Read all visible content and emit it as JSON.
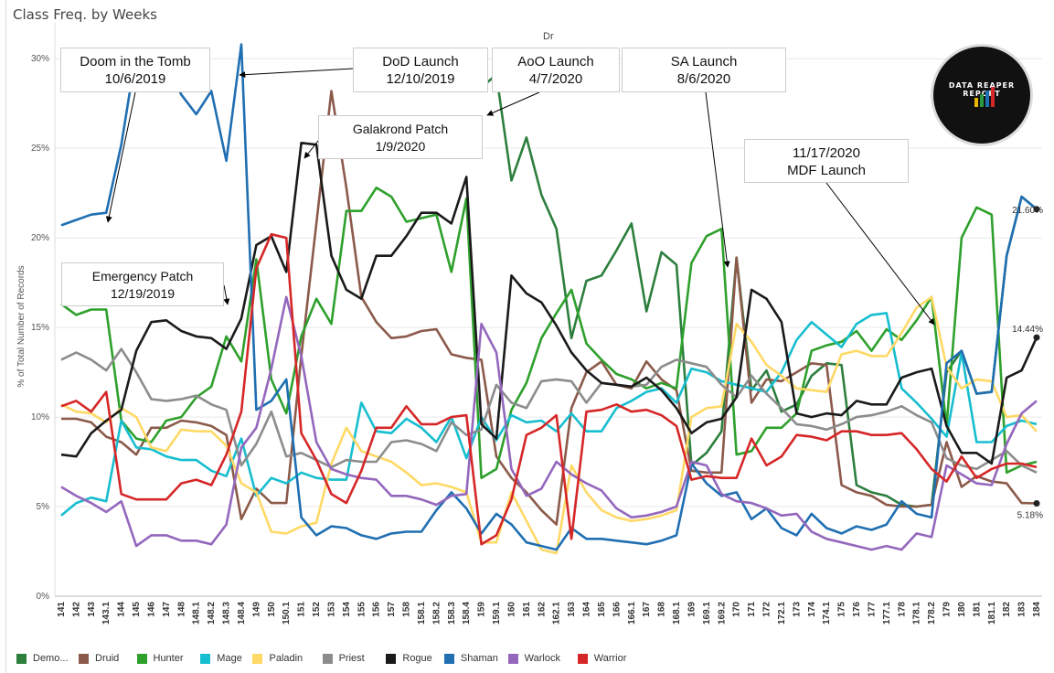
{
  "page_title": "Class Freq. by Weeks",
  "facet_label": "Dr",
  "logo": {
    "text": "DATA REAPER REPORT"
  },
  "y_axis_label": "% of Total Number of Records",
  "end_labels": {
    "hunter_dark": "21.60%",
    "rogue": "14.44%",
    "warlock": "5.18%"
  },
  "annotations": [
    {
      "id": "doom",
      "line1": "Doom in the Tomb",
      "line2": "10/6/2019"
    },
    {
      "id": "dod",
      "line1": "DoD Launch",
      "line2": "12/10/2019"
    },
    {
      "id": "aoo",
      "line1": "AoO Launch",
      "line2": "4/7/2020"
    },
    {
      "id": "sa",
      "line1": "SA Launch",
      "line2": "8/6/2020"
    },
    {
      "id": "galak",
      "line1": "Galakrond Patch",
      "line2": "1/9/2020"
    },
    {
      "id": "mdf",
      "line1": "11/17/2020",
      "line2": "MDF Launch"
    },
    {
      "id": "emerg",
      "line1": "Emergency Patch",
      "line2": "12/19/2019"
    }
  ],
  "chart_data": {
    "type": "line",
    "title": "Class Freq. by Weeks",
    "ylabel": "% of Total Number of Records",
    "ylim": [
      0,
      32
    ],
    "yticks": [
      "0%",
      "5%",
      "10%",
      "15%",
      "20%",
      "25%",
      "30%"
    ],
    "grid": true,
    "legend_position": "bottom",
    "x": [
      "141",
      "142",
      "143",
      "143.1",
      "144",
      "145",
      "146",
      "147",
      "148",
      "148.1",
      "148.2",
      "148.3",
      "148.4",
      "149",
      "150",
      "150.1",
      "151",
      "152",
      "153",
      "154",
      "155",
      "156",
      "157",
      "158",
      "158.1",
      "158.2",
      "158.3",
      "158.4",
      "159",
      "159.1",
      "160",
      "161",
      "162",
      "162.1",
      "163",
      "164",
      "165",
      "166",
      "166.1",
      "167",
      "168",
      "168.1",
      "169",
      "169.1",
      "169.2",
      "170",
      "171",
      "172",
      "172.1",
      "173",
      "174",
      "174.1",
      "175",
      "176",
      "177",
      "177.1",
      "178",
      "178.1",
      "178.2",
      "179",
      "180",
      "181",
      "181.1",
      "182",
      "183",
      "184"
    ],
    "series": [
      {
        "name": "Demo...",
        "color": "#2d7f3e",
        "values": [
          null,
          null,
          null,
          null,
          null,
          null,
          null,
          null,
          null,
          null,
          null,
          null,
          null,
          null,
          null,
          null,
          null,
          null,
          null,
          null,
          null,
          null,
          null,
          null,
          null,
          null,
          null,
          null,
          28.4,
          29.1,
          23.2,
          25.6,
          22.4,
          20.5,
          14.4,
          17.6,
          17.9,
          19.3,
          20.8,
          15.9,
          19.2,
          18.5,
          7.3,
          8.0,
          9.2,
          18.9,
          11.5,
          12.6,
          10.3,
          10.7,
          12.3,
          13.0,
          12.9,
          6.2,
          5.8,
          5.6,
          5.1,
          5.0,
          5.1,
          12.5,
          13.7,
          11.3,
          11.4,
          19.0,
          22.3,
          21.6
        ]
      },
      {
        "name": "Druid",
        "color": "#8b5a4a",
        "values": [
          9.9,
          9.9,
          9.7,
          8.9,
          8.6,
          7.9,
          9.4,
          9.4,
          9.8,
          9.7,
          9.5,
          9.0,
          4.3,
          6.0,
          5.2,
          5.2,
          13.4,
          20.8,
          28.2,
          22.8,
          16.7,
          15.3,
          14.4,
          14.5,
          14.8,
          14.9,
          13.5,
          13.3,
          13.2,
          7.8,
          6.6,
          5.8,
          4.8,
          4.0,
          10.5,
          12.5,
          13.1,
          11.8,
          11.6,
          13.1,
          12.1,
          11.5,
          7.0,
          6.9,
          6.9,
          18.9,
          10.8,
          12.1,
          12.0,
          12.5,
          13.0,
          12.9,
          6.2,
          5.8,
          5.6,
          5.1,
          5.0,
          5.0,
          5.1,
          8.6,
          6.1,
          6.7,
          6.4,
          6.3,
          5.2,
          5.18
        ]
      },
      {
        "name": "Hunter",
        "color": "#2ea02c",
        "values": [
          16.3,
          15.7,
          16.0,
          16.0,
          9.8,
          8.8,
          8.6,
          9.8,
          10.0,
          11.1,
          11.7,
          14.5,
          13.1,
          18.8,
          12.1,
          10.2,
          14.5,
          16.6,
          15.2,
          21.5,
          21.5,
          22.8,
          22.3,
          20.9,
          21.1,
          21.3,
          18.1,
          22.2,
          6.6,
          7.1,
          10.4,
          11.9,
          14.4,
          15.8,
          17.1,
          14.1,
          13.2,
          12.4,
          12.1,
          11.6,
          11.9,
          11.6,
          18.6,
          20.1,
          20.5,
          7.9,
          8.1,
          9.4,
          9.4,
          10.2,
          13.7,
          14.0,
          14.2,
          14.8,
          13.7,
          14.9,
          14.3,
          15.4,
          16.7,
          9.5,
          20.0,
          21.7,
          21.3,
          6.9,
          7.3,
          7.5
        ]
      },
      {
        "name": "Mage",
        "color": "#17becf",
        "values": [
          4.5,
          5.2,
          5.5,
          5.3,
          9.8,
          8.3,
          8.2,
          7.8,
          7.6,
          7.6,
          7.0,
          6.7,
          8.8,
          5.6,
          6.6,
          6.3,
          6.9,
          6.6,
          6.5,
          6.5,
          10.8,
          9.2,
          9.1,
          9.9,
          9.4,
          8.6,
          10.0,
          7.7,
          10.0,
          8.7,
          10.1,
          9.7,
          9.8,
          9.2,
          10.2,
          9.2,
          9.2,
          10.5,
          10.9,
          11.4,
          11.6,
          10.8,
          12.7,
          12.5,
          12.0,
          11.8,
          11.6,
          11.4,
          12.5,
          14.3,
          15.3,
          14.6,
          13.9,
          15.2,
          15.7,
          15.8,
          11.6,
          10.8,
          9.9,
          8.9,
          13.6,
          8.6,
          8.6,
          9.5,
          9.8,
          9.6
        ]
      },
      {
        "name": "Paladin",
        "color": "#ffd966",
        "values": [
          10.7,
          10.3,
          10.2,
          9.7,
          10.5,
          10.0,
          8.3,
          8.1,
          9.3,
          9.2,
          9.2,
          8.4,
          6.3,
          5.8,
          3.6,
          3.5,
          3.9,
          4.1,
          7.4,
          9.4,
          8.1,
          7.8,
          7.5,
          6.9,
          6.2,
          6.3,
          6.1,
          5.8,
          3.0,
          3.0,
          5.8,
          4.2,
          2.6,
          2.4,
          7.3,
          5.8,
          4.8,
          4.4,
          4.2,
          4.3,
          4.5,
          4.8,
          10.0,
          10.5,
          10.6,
          15.2,
          14.2,
          12.9,
          12.3,
          11.6,
          11.5,
          11.4,
          13.5,
          13.7,
          13.4,
          13.4,
          14.7,
          16.1,
          16.7,
          12.8,
          11.6,
          12.1,
          12.0,
          10.0,
          10.1,
          9.2
        ]
      },
      {
        "name": "Priest",
        "color": "#8c8c8c",
        "values": [
          13.2,
          13.6,
          13.2,
          12.6,
          13.8,
          12.5,
          11.0,
          10.9,
          11.0,
          11.2,
          10.7,
          10.4,
          7.3,
          8.5,
          10.3,
          7.8,
          8.0,
          7.6,
          7.2,
          7.6,
          7.5,
          7.5,
          8.6,
          8.7,
          8.5,
          8.1,
          9.7,
          9.0,
          9.3,
          11.8,
          10.8,
          10.5,
          12.0,
          12.1,
          12.0,
          10.8,
          11.9,
          11.8,
          11.7,
          11.8,
          12.8,
          13.2,
          13.0,
          12.8,
          11.8,
          11.1,
          12.3,
          11.3,
          10.5,
          9.6,
          9.5,
          9.3,
          9.6,
          10.0,
          10.1,
          10.3,
          10.6,
          10.1,
          9.7,
          7.7,
          7.3,
          7.1,
          7.6,
          8.1,
          7.3,
          6.9
        ]
      },
      {
        "name": "Rogue",
        "color": "#1a1a1a",
        "values": [
          7.9,
          7.8,
          9.1,
          9.8,
          10.4,
          13.7,
          15.3,
          15.4,
          14.8,
          14.5,
          14.4,
          13.8,
          15.5,
          19.6,
          20.1,
          18.1,
          25.3,
          25.2,
          19.0,
          17.1,
          16.6,
          19.0,
          19.0,
          20.1,
          21.4,
          21.4,
          20.8,
          23.4,
          9.6,
          8.8,
          17.9,
          16.9,
          16.4,
          15.1,
          13.6,
          12.6,
          11.9,
          11.8,
          11.7,
          12.2,
          11.5,
          10.5,
          9.1,
          9.7,
          9.9,
          11.1,
          17.1,
          16.6,
          15.3,
          10.2,
          10.0,
          10.2,
          10.1,
          10.9,
          10.7,
          10.7,
          12.2,
          12.5,
          12.7,
          9.5,
          8.0,
          8.0,
          7.4,
          12.2,
          12.6,
          14.44
        ]
      },
      {
        "name": "Shaman",
        "color": "#1f6fb2",
        "values": [
          20.7,
          21.0,
          21.3,
          21.4,
          25.2,
          30.4,
          30.1,
          29.7,
          28.0,
          26.9,
          28.2,
          24.3,
          30.8,
          10.4,
          10.9,
          12.1,
          4.4,
          3.4,
          3.9,
          3.8,
          3.4,
          3.2,
          3.5,
          3.6,
          3.6,
          4.8,
          5.8,
          4.9,
          3.5,
          4.6,
          4.0,
          3.0,
          2.8,
          2.6,
          3.8,
          3.2,
          3.2,
          3.1,
          3.0,
          2.9,
          3.1,
          3.4,
          7.4,
          6.3,
          5.6,
          5.8,
          4.3,
          4.9,
          3.8,
          3.4,
          4.6,
          3.8,
          3.5,
          3.9,
          3.7,
          4.0,
          5.3,
          4.6,
          4.4,
          13.0,
          13.7,
          11.3,
          11.4,
          19.0,
          22.3,
          21.6
        ]
      },
      {
        "name": "Warlock",
        "color": "#9467bd",
        "values": [
          6.1,
          5.6,
          5.2,
          4.7,
          5.3,
          2.8,
          3.4,
          3.4,
          3.1,
          3.1,
          2.9,
          4.0,
          8.3,
          9.4,
          12.7,
          16.7,
          13.4,
          8.6,
          7.1,
          6.8,
          6.6,
          6.5,
          5.6,
          5.6,
          5.4,
          5.1,
          5.6,
          5.7,
          15.2,
          13.6,
          7.1,
          5.6,
          6.0,
          7.5,
          6.8,
          6.3,
          5.9,
          4.9,
          4.4,
          4.5,
          4.7,
          5.0,
          7.5,
          7.3,
          5.7,
          5.3,
          5.2,
          4.9,
          4.5,
          4.6,
          3.6,
          3.2,
          3.0,
          2.8,
          2.6,
          2.8,
          2.6,
          3.5,
          3.3,
          7.3,
          6.8,
          6.3,
          6.2,
          8.5,
          10.2,
          10.9
        ]
      },
      {
        "name": "Warrior",
        "color": "#d62728",
        "values": [
          10.6,
          10.9,
          10.3,
          11.4,
          5.7,
          5.4,
          5.4,
          5.4,
          6.3,
          6.5,
          6.2,
          7.9,
          10.3,
          18.3,
          20.2,
          20.0,
          9.1,
          7.6,
          5.7,
          5.2,
          7.0,
          9.4,
          9.4,
          10.6,
          9.6,
          9.6,
          10.0,
          10.1,
          2.9,
          3.4,
          5.4,
          9.0,
          9.4,
          10.1,
          3.2,
          10.3,
          10.4,
          10.7,
          10.3,
          10.4,
          10.1,
          9.5,
          6.5,
          6.7,
          6.6,
          6.6,
          8.8,
          7.3,
          7.8,
          9.0,
          8.9,
          8.7,
          9.2,
          9.2,
          9.0,
          9.0,
          9.1,
          8.2,
          7.1,
          6.4,
          7.8,
          6.6,
          7.1,
          7.4,
          7.4,
          7.2
        ]
      }
    ]
  }
}
